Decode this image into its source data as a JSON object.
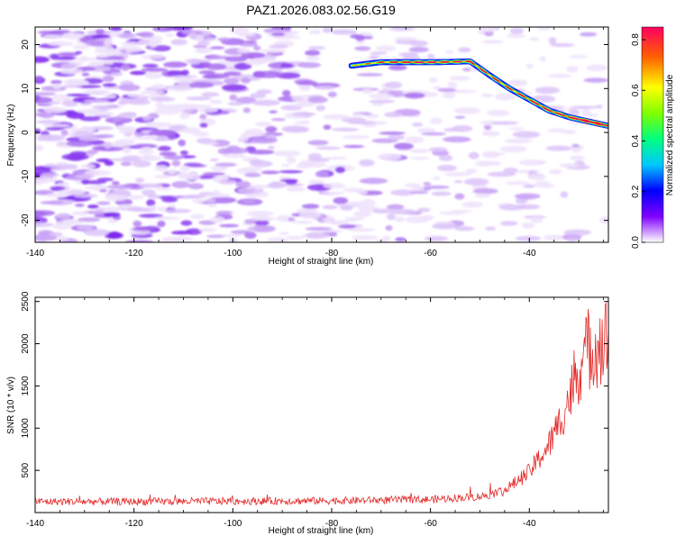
{
  "title": "PAZ1.2026.083.02.56.G19",
  "chart_data": [
    {
      "type": "heatmap",
      "xlabel": "Height of straight line (km)",
      "ylabel": "Frequency (Hz)",
      "xlim": [
        -140,
        -24
      ],
      "ylim": [
        -25,
        24
      ],
      "xticks": [
        -140,
        -120,
        -100,
        -80,
        -60,
        -40
      ],
      "yticks": [
        -20,
        -10,
        0,
        10,
        20
      ],
      "colorbar": {
        "label": "Normalized spectral amplitude",
        "range": [
          0,
          0.85
        ],
        "ticks": [
          "0.0",
          "0.2",
          "0.4",
          "0.6",
          "0.8"
        ]
      },
      "signal_trace": {
        "height_km": [
          -76,
          -70,
          -64,
          -58,
          -52,
          -48,
          -44,
          -40,
          -36,
          -32,
          -28,
          -24
        ],
        "frequency_hz": [
          15.2,
          16.0,
          16.0,
          16.0,
          16.2,
          13.0,
          10.0,
          7.5,
          5.0,
          3.5,
          2.5,
          1.5
        ],
        "amplitude": [
          0.25,
          0.4,
          0.55,
          0.5,
          0.5,
          0.45,
          0.42,
          0.5,
          0.55,
          0.55,
          0.85,
          0.7
        ]
      }
    },
    {
      "type": "line",
      "xlabel": "Height of straight line (km)",
      "ylabel": "SNR (10 * v/v)",
      "xlim": [
        -140,
        -24
      ],
      "ylim": [
        0,
        2550
      ],
      "xticks": [
        -140,
        -120,
        -100,
        -80,
        -60,
        -40
      ],
      "yticks": [
        500,
        1000,
        1500,
        2000,
        2500
      ],
      "series": [
        {
          "name": "SNR",
          "color": "#e32b2b",
          "x_range": [
            -140,
            -24
          ],
          "step_km": 0.15,
          "envelope_km": [
            -140,
            -120,
            -100,
            -80,
            -60,
            -50,
            -45,
            -40,
            -36,
            -34,
            -32,
            -30,
            -28,
            -26,
            -24
          ],
          "envelope_snr": [
            130,
            130,
            135,
            140,
            155,
            190,
            260,
            480,
            800,
            1050,
            1350,
            1700,
            1950,
            2000,
            2050
          ]
        }
      ]
    }
  ]
}
